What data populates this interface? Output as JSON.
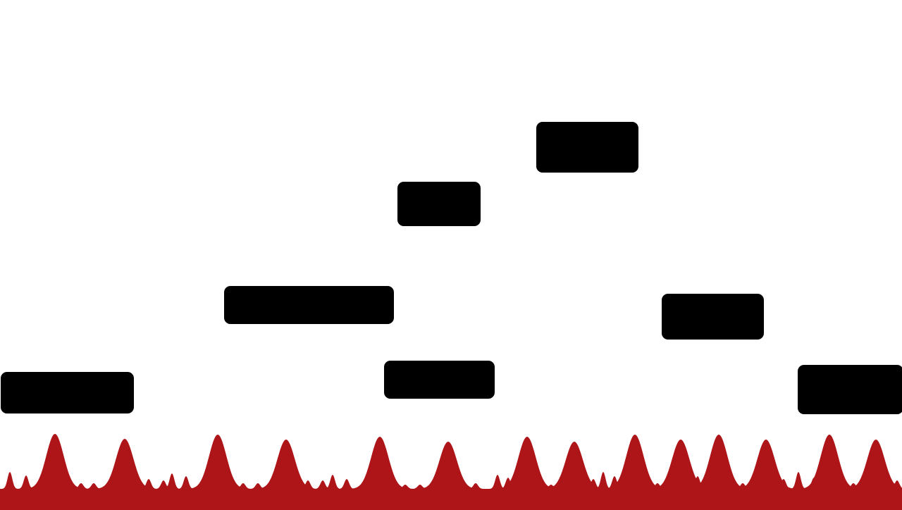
{
  "scene": {
    "background_color": "#ffffff",
    "platform_color": "#000000",
    "hazard_color": "#ad1519",
    "platform_count": 7,
    "hazard_type": "spiky red liquid floor"
  }
}
